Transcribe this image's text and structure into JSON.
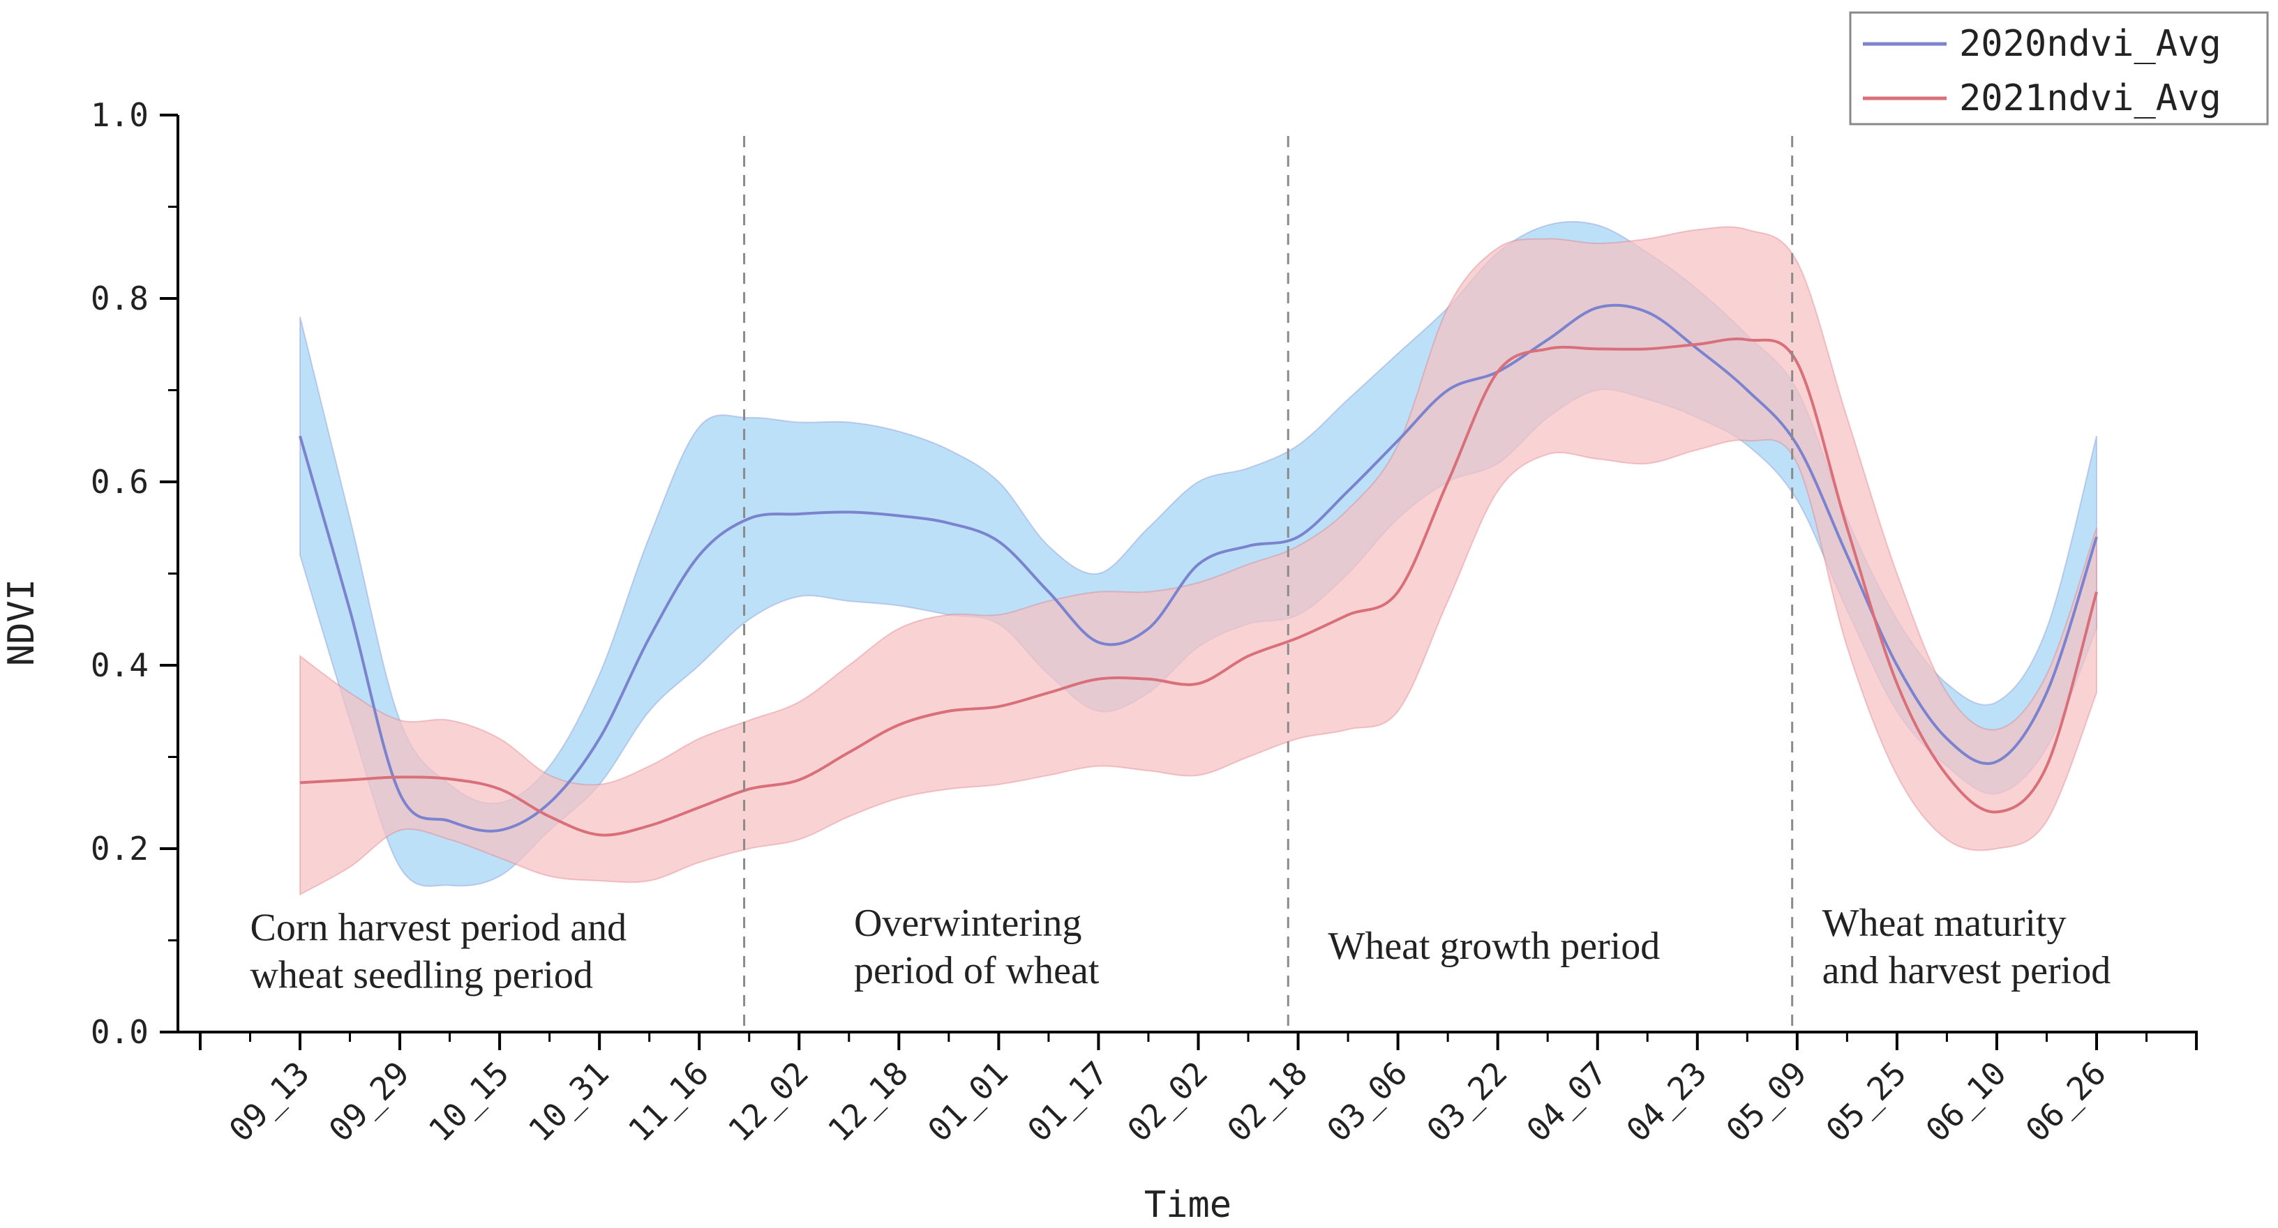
{
  "chart_data": {
    "type": "line",
    "title": "",
    "xlabel": "Time",
    "ylabel": "NDVI",
    "ylim": [
      0,
      1
    ],
    "yticks": [
      "0.0",
      "0.2",
      "0.4",
      "0.6",
      "0.8",
      "1.0"
    ],
    "categories": [
      "09_13",
      "09_29",
      "10_15",
      "10_31",
      "11_16",
      "12_02",
      "12_18",
      "01_01",
      "01_17",
      "02_02",
      "02_18",
      "03_06",
      "03_22",
      "04_07",
      "04_23",
      "05_09",
      "05_25",
      "06_10",
      "06_26"
    ],
    "x_extent": [
      -1,
      19.8
    ],
    "legend_position": "top-right",
    "colors": {
      "series_2020_line": "#7b83cf",
      "series_2020_band": "#b7def8",
      "series_2021_line": "#d96f78",
      "series_2021_band": "#f7c0c3",
      "divider": "#8a8a8a"
    },
    "series": [
      {
        "name": "2020ndvi_Avg",
        "x": [
          0,
          0.5,
          1,
          1.5,
          2,
          2.5,
          3,
          3.5,
          4,
          4.5,
          5,
          5.5,
          6,
          6.5,
          7,
          7.5,
          8,
          8.5,
          9,
          9.5,
          10,
          10.5,
          11,
          11.5,
          12,
          12.5,
          13,
          13.5,
          14,
          14.5,
          15,
          15.5,
          16,
          16.5,
          17,
          17.5,
          18
        ],
        "values": [
          0.65,
          0.46,
          0.26,
          0.23,
          0.22,
          0.25,
          0.32,
          0.43,
          0.52,
          0.56,
          0.565,
          0.567,
          0.563,
          0.555,
          0.535,
          0.48,
          0.425,
          0.44,
          0.51,
          0.53,
          0.54,
          0.59,
          0.645,
          0.7,
          0.72,
          0.755,
          0.79,
          0.785,
          0.745,
          0.7,
          0.64,
          0.52,
          0.4,
          0.32,
          0.295,
          0.37,
          0.54
        ],
        "upper": [
          0.78,
          0.56,
          0.34,
          0.27,
          0.25,
          0.29,
          0.39,
          0.54,
          0.66,
          0.67,
          0.665,
          0.665,
          0.655,
          0.635,
          0.6,
          0.53,
          0.5,
          0.55,
          0.6,
          0.615,
          0.64,
          0.69,
          0.74,
          0.79,
          0.85,
          0.88,
          0.88,
          0.85,
          0.81,
          0.76,
          0.7,
          0.56,
          0.45,
          0.38,
          0.36,
          0.44,
          0.65
        ],
        "lower": [
          0.52,
          0.34,
          0.18,
          0.16,
          0.17,
          0.22,
          0.27,
          0.35,
          0.4,
          0.45,
          0.475,
          0.47,
          0.465,
          0.455,
          0.445,
          0.39,
          0.35,
          0.37,
          0.42,
          0.445,
          0.455,
          0.5,
          0.56,
          0.6,
          0.62,
          0.67,
          0.7,
          0.69,
          0.67,
          0.64,
          0.58,
          0.46,
          0.35,
          0.29,
          0.26,
          0.31,
          0.44
        ]
      },
      {
        "name": "2021ndvi_Avg",
        "x": [
          0,
          0.5,
          1,
          1.5,
          2,
          2.5,
          3,
          3.5,
          4,
          4.5,
          5,
          5.5,
          6,
          6.5,
          7,
          7.5,
          8,
          8.5,
          9,
          9.5,
          10,
          10.5,
          11,
          11.5,
          12,
          12.5,
          13,
          13.5,
          14,
          14.5,
          15,
          15.5,
          16,
          16.5,
          17,
          17.5,
          18
        ],
        "values": [
          0.272,
          0.275,
          0.278,
          0.276,
          0.265,
          0.235,
          0.215,
          0.225,
          0.245,
          0.265,
          0.275,
          0.305,
          0.335,
          0.35,
          0.355,
          0.37,
          0.385,
          0.385,
          0.38,
          0.41,
          0.43,
          0.455,
          0.48,
          0.6,
          0.72,
          0.745,
          0.745,
          0.745,
          0.75,
          0.755,
          0.73,
          0.55,
          0.38,
          0.28,
          0.24,
          0.29,
          0.48
        ],
        "upper": [
          0.41,
          0.37,
          0.34,
          0.34,
          0.32,
          0.28,
          0.27,
          0.29,
          0.32,
          0.34,
          0.36,
          0.4,
          0.44,
          0.455,
          0.455,
          0.47,
          0.48,
          0.48,
          0.49,
          0.51,
          0.53,
          0.57,
          0.64,
          0.79,
          0.855,
          0.865,
          0.86,
          0.865,
          0.875,
          0.875,
          0.84,
          0.67,
          0.5,
          0.37,
          0.33,
          0.39,
          0.55
        ],
        "lower": [
          0.15,
          0.18,
          0.22,
          0.21,
          0.19,
          0.17,
          0.165,
          0.165,
          0.185,
          0.2,
          0.21,
          0.235,
          0.255,
          0.265,
          0.27,
          0.28,
          0.29,
          0.285,
          0.28,
          0.3,
          0.32,
          0.33,
          0.35,
          0.47,
          0.59,
          0.63,
          0.625,
          0.62,
          0.635,
          0.645,
          0.62,
          0.42,
          0.28,
          0.21,
          0.2,
          0.23,
          0.37
        ]
      }
    ],
    "dividers_x": [
      4.45,
      9.9,
      14.95
    ],
    "annotations": [
      {
        "lines": [
          "Corn harvest period and",
          "wheat seedling period"
        ],
        "x": -0.5,
        "y": 0.1
      },
      {
        "lines": [
          "Overwintering",
          "period of wheat"
        ],
        "x": 5.55,
        "y": 0.105
      },
      {
        "lines": [
          "Wheat growth  period"
        ],
        "x": 10.3,
        "y": 0.08
      },
      {
        "lines": [
          "Wheat maturity",
          "and harvest period"
        ],
        "x": 15.25,
        "y": 0.105
      }
    ]
  }
}
